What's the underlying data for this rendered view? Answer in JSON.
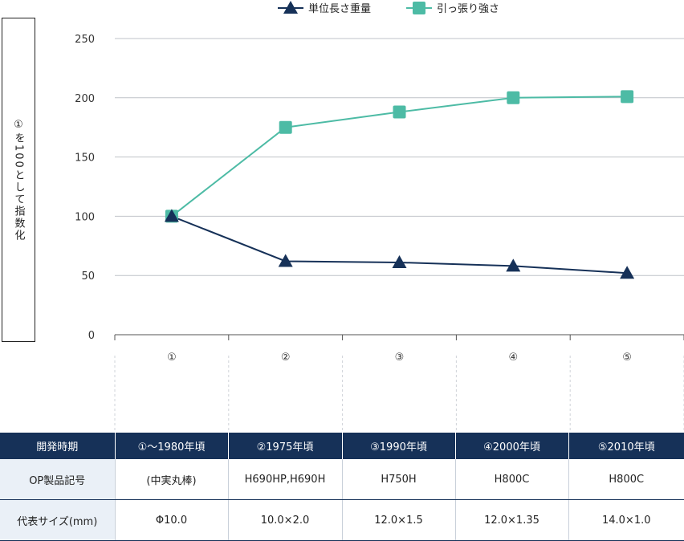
{
  "chart_data": {
    "type": "line",
    "categories": [
      "①",
      "②",
      "③",
      "④",
      "⑤"
    ],
    "series": [
      {
        "name": "単位長さ重量",
        "marker": "triangle",
        "color": "#163158",
        "values": [
          100,
          62,
          61,
          58,
          52
        ]
      },
      {
        "name": "引っ張り強さ",
        "marker": "square",
        "color": "#4dbba5",
        "values": [
          100,
          175,
          188,
          200,
          201
        ]
      }
    ],
    "ylabel": "①を100として指数化",
    "xlabel": "",
    "ylim": [
      0,
      250
    ],
    "yticks": [
      0,
      50,
      100,
      150,
      200,
      250
    ],
    "grid": true,
    "legend": "top-center"
  },
  "table": {
    "headers": [
      "開発時期",
      "①〜1980年頃",
      "②1975年頃",
      "③1990年頃",
      "④2000年頃",
      "⑤2010年頃"
    ],
    "rows": [
      {
        "label": "OP製品記号",
        "cells": [
          "(中実丸棒)",
          "H690HP,H690H",
          "H750H",
          "H800C",
          "H800C"
        ]
      },
      {
        "label": "代表サイズ(mm)",
        "cells": [
          "Φ10.0",
          "10.0×2.0",
          "12.0×1.5",
          "12.0×1.35",
          "14.0×1.0"
        ]
      }
    ]
  }
}
